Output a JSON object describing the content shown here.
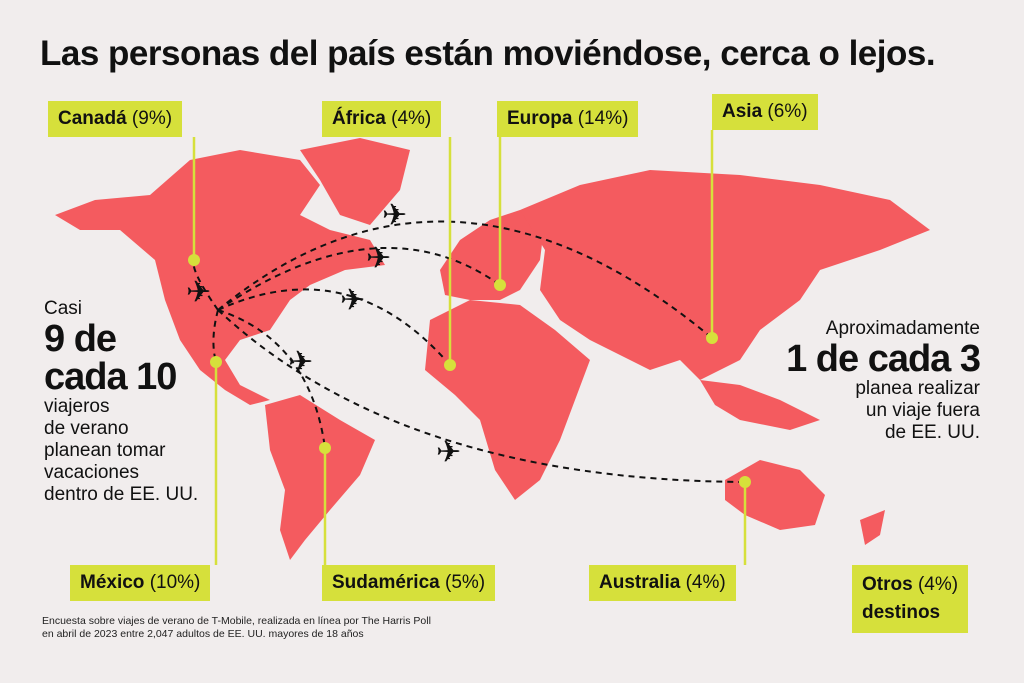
{
  "title": "Las personas del país están moviéndose, cerca o lejos.",
  "labels": {
    "canada": {
      "name": "Canadá",
      "pct": "(9%)"
    },
    "africa": {
      "name": "África",
      "pct": "(4%)"
    },
    "europa": {
      "name": "Europa",
      "pct": "(14%)"
    },
    "asia": {
      "name": "Asia",
      "pct": "(6%)"
    },
    "mexico": {
      "name": "México",
      "pct": "(10%)"
    },
    "sudamerica": {
      "name": "Sudamérica",
      "pct": "(5%)"
    },
    "australia": {
      "name": "Australia",
      "pct": "(4%)"
    },
    "otros": {
      "name": "Otros",
      "pct": "(4%)",
      "line2": "destinos"
    }
  },
  "left_stat": {
    "pre": "Casi",
    "big1": "9 de",
    "big2": "cada 10",
    "l1": "viajeros",
    "l2": "de verano",
    "l3": "planean tomar",
    "l4": "vacaciones",
    "l5": "dentro de EE. UU."
  },
  "right_stat": {
    "pre": "Aproximadamente",
    "big": "1 de cada 3",
    "l1": "planea realizar",
    "l2": "un viaje fuera",
    "l3": "de EE. UU."
  },
  "footnote": {
    "l1": "Encuesta sobre viajes de verano de T-Mobile, realizada en línea por The Harris Poll",
    "l2": "en abril de 2023 entre 2,047 adultos de EE. UU. mayores de 18 años"
  },
  "colors": {
    "background": "#f1eded",
    "land": "#f45b5f",
    "tag": "#d6e03b"
  }
}
